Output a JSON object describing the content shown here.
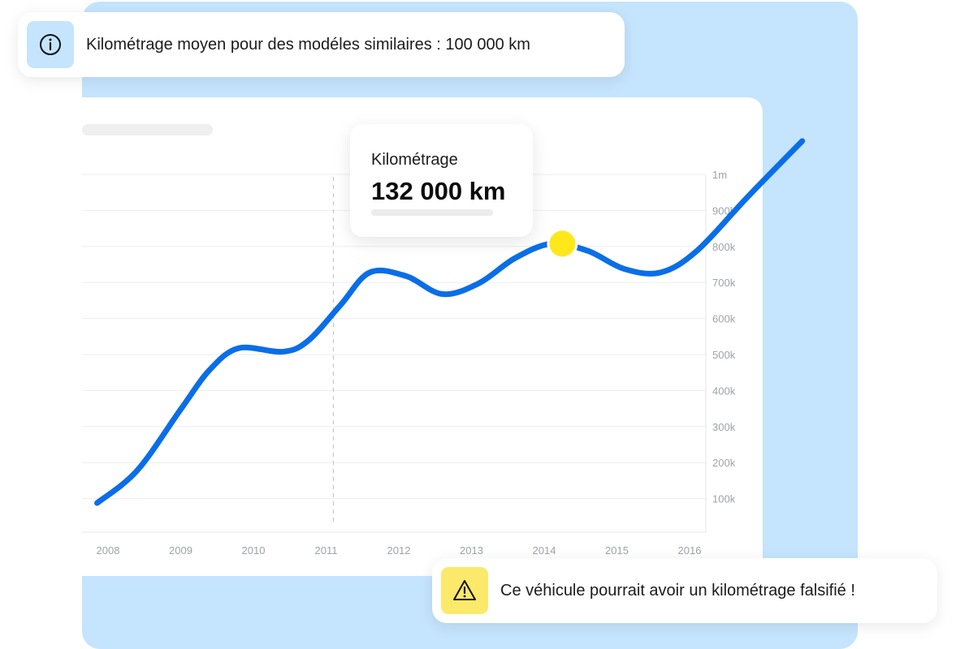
{
  "info_banner": {
    "icon": "info-icon",
    "text": "Kilométrage moyen pour des modéles similaires : 100 000 km"
  },
  "warning_banner": {
    "icon": "warning-icon",
    "text": "Ce véhicule pourrait avoir un kilométrage falsifié !"
  },
  "tooltip": {
    "label": "Kilométrage",
    "value": "132 000 km"
  },
  "colors": {
    "backdrop": "#c5e4fd",
    "line": "#0a6ee8",
    "marker": "#ffe81a",
    "warning_bg": "#fbe96b",
    "info_bg": "#c5e4fd"
  },
  "chart_data": {
    "type": "line",
    "x_ticks": [
      "2008",
      "2009",
      "2010",
      "2011",
      "2012",
      "2013",
      "2014",
      "2015",
      "2016"
    ],
    "y_ticks": [
      "100k",
      "200k",
      "300k",
      "400k",
      "500k",
      "600k",
      "700k",
      "800k",
      "900k",
      "1m"
    ],
    "ylim": [
      0,
      1000000
    ],
    "grid": true,
    "series": [
      {
        "points": [
          {
            "x": 2007.85,
            "y": 90000
          },
          {
            "x": 2008.4,
            "y": 180000
          },
          {
            "x": 2009.0,
            "y": 350000
          },
          {
            "x": 2009.4,
            "y": 460000
          },
          {
            "x": 2009.8,
            "y": 520000
          },
          {
            "x": 2010.4,
            "y": 510000
          },
          {
            "x": 2010.75,
            "y": 540000
          },
          {
            "x": 2011.2,
            "y": 640000
          },
          {
            "x": 2011.6,
            "y": 730000
          },
          {
            "x": 2012.1,
            "y": 720000
          },
          {
            "x": 2012.6,
            "y": 670000
          },
          {
            "x": 2013.1,
            "y": 700000
          },
          {
            "x": 2013.6,
            "y": 770000
          },
          {
            "x": 2014.1,
            "y": 810000
          },
          {
            "x": 2014.6,
            "y": 790000
          },
          {
            "x": 2015.1,
            "y": 740000
          },
          {
            "x": 2015.6,
            "y": 730000
          },
          {
            "x": 2016.1,
            "y": 790000
          },
          {
            "x": 2016.8,
            "y": 940000
          },
          {
            "x": 2017.55,
            "y": 1095000
          }
        ]
      }
    ],
    "highlight": {
      "x": 2014.25,
      "y": 810000
    },
    "reference_x": 2011.1
  }
}
